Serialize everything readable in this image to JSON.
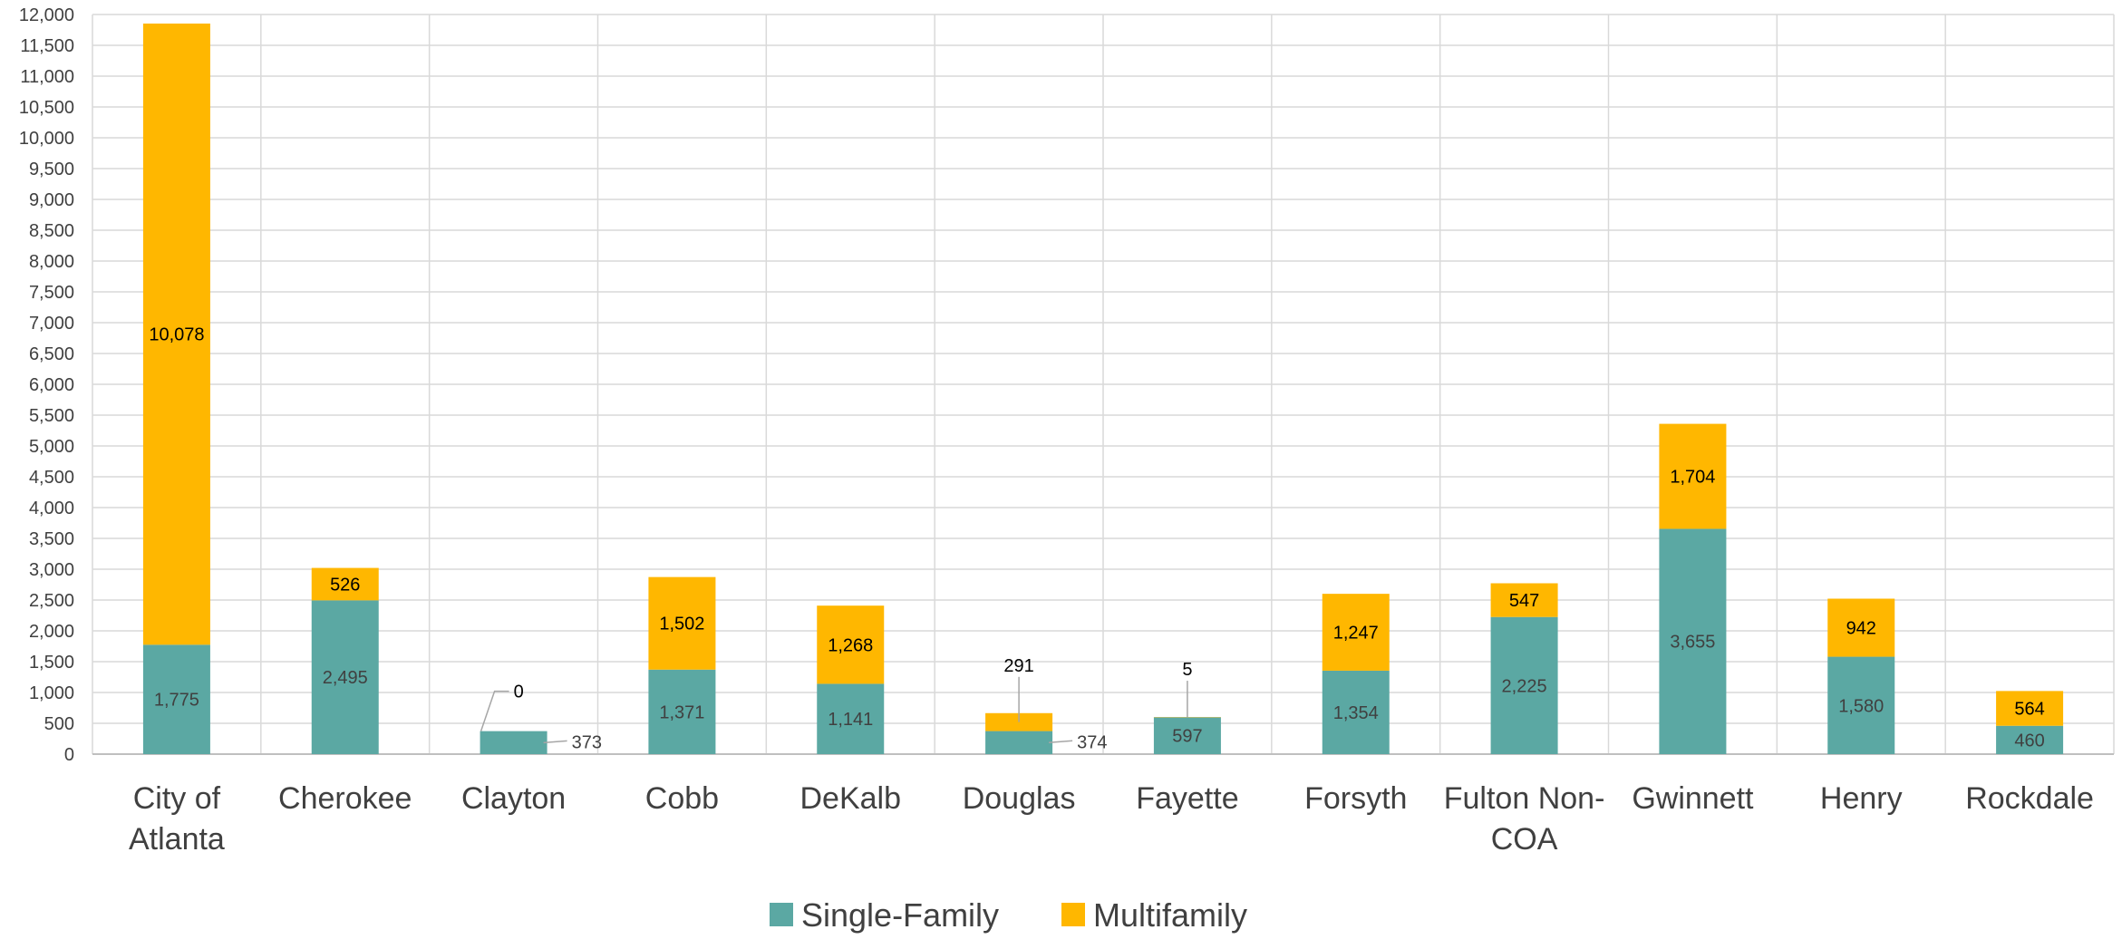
{
  "chart_data": {
    "type": "bar",
    "stacked": true,
    "categories": [
      [
        "City of",
        "Atlanta"
      ],
      [
        "Cherokee"
      ],
      [
        "Clayton"
      ],
      [
        "Cobb"
      ],
      [
        "DeKalb"
      ],
      [
        "Douglas"
      ],
      [
        "Fayette"
      ],
      [
        "Forsyth"
      ],
      [
        "Fulton Non-",
        "COA"
      ],
      [
        "Gwinnett"
      ],
      [
        "Henry"
      ],
      [
        "Rockdale"
      ]
    ],
    "series": [
      {
        "name": "Single-Family",
        "color": "#5ba8a3",
        "values": [
          1775,
          2495,
          373,
          1371,
          1141,
          374,
          597,
          1354,
          2225,
          3655,
          1580,
          460
        ],
        "labels": [
          "1,775",
          "2,495",
          "373",
          "1,371",
          "1,141",
          "374",
          "597",
          "1,354",
          "2,225",
          "3,655",
          "1,580",
          "460"
        ]
      },
      {
        "name": "Multifamily",
        "color": "#ffb700",
        "values": [
          10078,
          526,
          0,
          1502,
          1268,
          291,
          5,
          1247,
          547,
          1704,
          942,
          564
        ],
        "labels": [
          "10,078",
          "526",
          "0",
          "1,502",
          "1,268",
          "291",
          "5",
          "1,247",
          "547",
          "1,704",
          "942",
          "564"
        ]
      }
    ],
    "ylim": [
      0,
      12000
    ],
    "ytick_step": 500,
    "grid": true,
    "legend": "bottom-center",
    "title": "",
    "xlabel": "",
    "ylabel": ""
  }
}
